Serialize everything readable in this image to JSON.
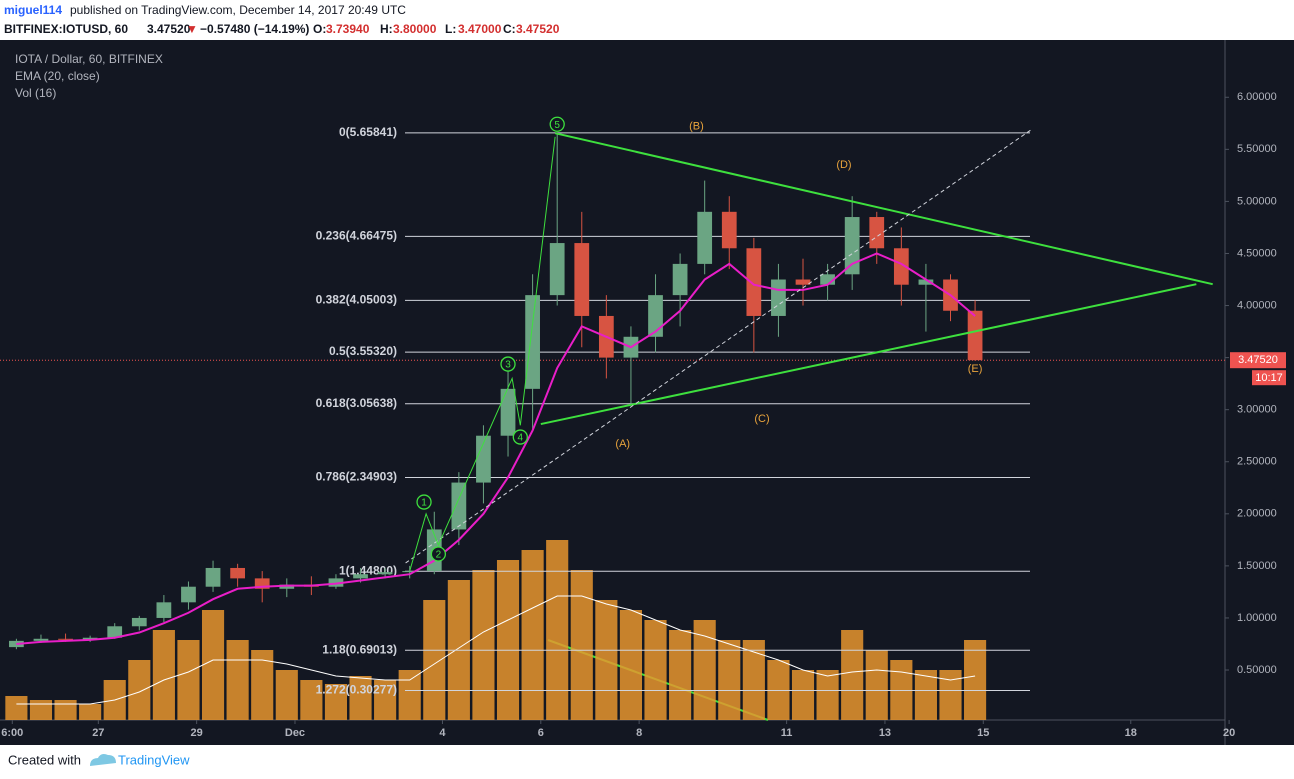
{
  "header": {
    "author": "miguel114",
    "published": "published on TradingView.com, December 14, 2017 20:49 UTC",
    "symbol": "BITFINEX:IOTUSD, 60",
    "last": "3.47520",
    "arrow": "▼",
    "change": "−0.57480 (−14.19%)",
    "ohlc": [
      {
        "key": "O:",
        "value": "3.73940"
      },
      {
        "key": "H:",
        "value": "3.80000"
      },
      {
        "key": "L:",
        "value": "3.47000"
      },
      {
        "key": "C:",
        "value": "3.47520"
      }
    ]
  },
  "footer": {
    "created": "Created with",
    "brand": "TradingView"
  },
  "chart_data": {
    "type": "candlestick",
    "title": "IOTA / Dollar, 60, BITFINEX",
    "up_color": "#6ba583",
    "down_color": "#d75442",
    "candles": {
      "x": [
        "2017-11-25 08:00",
        "2017-11-25 20:00",
        "2017-11-26 08:00",
        "2017-11-26 20:00",
        "2017-11-27 08:00",
        "2017-11-27 20:00",
        "2017-11-28 08:00",
        "2017-11-28 20:00",
        "2017-11-29 08:00",
        "2017-11-29 20:00",
        "2017-11-30 08:00",
        "2017-11-30 20:00",
        "2017-12-01 08:00",
        "2017-12-01 20:00",
        "2017-12-02 08:00",
        "2017-12-02 20:00",
        "2017-12-03 08:00",
        "2017-12-03 20:00",
        "2017-12-04 08:00",
        "2017-12-04 20:00",
        "2017-12-05 08:00",
        "2017-12-05 20:00",
        "2017-12-06 08:00",
        "2017-12-06 20:00",
        "2017-12-07 08:00",
        "2017-12-07 20:00",
        "2017-12-08 08:00",
        "2017-12-08 20:00",
        "2017-12-09 08:00",
        "2017-12-09 20:00",
        "2017-12-10 08:00",
        "2017-12-10 20:00",
        "2017-12-11 08:00",
        "2017-12-11 20:00",
        "2017-12-12 08:00",
        "2017-12-12 20:00",
        "2017-12-13 08:00",
        "2017-12-13 20:00",
        "2017-12-14 08:00",
        "2017-12-14 20:00"
      ],
      "open": [
        0.72,
        0.78,
        0.8,
        0.79,
        0.81,
        0.92,
        1.0,
        1.15,
        1.3,
        1.48,
        1.38,
        1.28,
        1.32,
        1.3,
        1.38,
        1.42,
        1.44,
        1.45,
        1.85,
        2.3,
        2.75,
        3.2,
        4.1,
        4.6,
        3.9,
        3.5,
        3.7,
        4.1,
        4.4,
        4.9,
        4.55,
        3.9,
        4.25,
        4.2,
        4.3,
        4.85,
        4.55,
        4.2,
        4.25,
        3.95
      ],
      "high": [
        0.8,
        0.84,
        0.85,
        0.83,
        0.95,
        1.02,
        1.22,
        1.35,
        1.55,
        1.52,
        1.45,
        1.38,
        1.4,
        1.42,
        1.48,
        1.48,
        1.5,
        2.02,
        2.4,
        2.85,
        3.4,
        4.3,
        5.65841,
        4.9,
        4.1,
        3.8,
        4.3,
        4.5,
        5.2,
        5.05,
        4.65,
        4.4,
        4.45,
        4.4,
        5.05,
        4.9,
        4.75,
        4.4,
        4.3,
        4.05
      ],
      "low": [
        0.7,
        0.76,
        0.77,
        0.77,
        0.8,
        0.88,
        0.96,
        1.08,
        1.25,
        1.3,
        1.15,
        1.2,
        1.22,
        1.28,
        1.34,
        1.38,
        1.38,
        1.42,
        1.7,
        2.1,
        2.55,
        2.8,
        4.0,
        3.6,
        3.3,
        3.05,
        3.55,
        3.8,
        4.3,
        4.35,
        3.55,
        3.7,
        4.0,
        4.05,
        4.15,
        4.4,
        4.0,
        3.75,
        3.85,
        3.47
      ],
      "close": [
        0.78,
        0.8,
        0.79,
        0.81,
        0.92,
        1.0,
        1.15,
        1.3,
        1.48,
        1.38,
        1.28,
        1.32,
        1.3,
        1.38,
        1.42,
        1.44,
        1.45,
        1.85,
        2.3,
        2.75,
        3.2,
        4.1,
        4.6,
        3.9,
        3.5,
        3.7,
        4.1,
        4.4,
        4.9,
        4.55,
        3.9,
        4.25,
        4.2,
        4.3,
        4.85,
        4.55,
        4.2,
        4.25,
        3.95,
        3.4752
      ]
    },
    "ema": {
      "name": "EMA (20, close)",
      "color": "#e91ec8",
      "values": [
        0.75,
        0.77,
        0.78,
        0.79,
        0.81,
        0.86,
        0.95,
        1.05,
        1.18,
        1.28,
        1.3,
        1.31,
        1.31,
        1.33,
        1.36,
        1.39,
        1.42,
        1.55,
        1.75,
        2.0,
        2.35,
        2.8,
        3.4,
        3.8,
        3.7,
        3.6,
        3.75,
        3.95,
        4.25,
        4.4,
        4.2,
        4.15,
        4.15,
        4.2,
        4.4,
        4.5,
        4.4,
        4.25,
        4.1,
        3.9
      ]
    },
    "volume": {
      "name": "Vol (16)",
      "color": "#e8952e",
      "ma_color": "#ffffff",
      "vlim": [
        0,
        100
      ],
      "values": [
        12,
        10,
        10,
        8,
        20,
        30,
        45,
        40,
        55,
        40,
        35,
        25,
        20,
        18,
        22,
        20,
        25,
        60,
        70,
        75,
        80,
        85,
        90,
        75,
        60,
        55,
        50,
        45,
        50,
        40,
        40,
        30,
        25,
        25,
        45,
        35,
        30,
        25,
        25,
        40
      ],
      "ma": [
        8,
        8,
        8,
        8,
        10,
        14,
        20,
        24,
        30,
        30,
        30,
        28,
        25,
        22,
        21,
        20,
        20,
        28,
        36,
        44,
        50,
        56,
        62,
        62,
        58,
        55,
        50,
        45,
        42,
        38,
        34,
        30,
        25,
        22,
        24,
        25,
        24,
        22,
        20,
        22
      ]
    },
    "xlim": [
      "2017-11-25 00:00",
      "2017-12-19 22:00"
    ],
    "xticks": [
      {
        "value": "2017-11-25 06:00",
        "label": "6:00"
      },
      {
        "value": "2017-11-27 00:00",
        "label": "27"
      },
      {
        "value": "2017-11-29 00:00",
        "label": "29"
      },
      {
        "value": "2017-12-01 00:00",
        "label": "Dec"
      },
      {
        "value": "2017-12-04 00:00",
        "label": "4"
      },
      {
        "value": "2017-12-06 00:00",
        "label": "6"
      },
      {
        "value": "2017-12-08 00:00",
        "label": "8"
      },
      {
        "value": "2017-12-11 00:00",
        "label": "11"
      },
      {
        "value": "2017-12-13 00:00",
        "label": "13"
      },
      {
        "value": "2017-12-15 00:00",
        "label": "15"
      },
      {
        "value": "2017-12-18 00:00",
        "label": "18"
      },
      {
        "value": "2017-12-20 00:00",
        "label": "20"
      }
    ],
    "ylim": [
      0.02,
      6.55
    ],
    "yticks": [
      {
        "value": 0.5,
        "label": "0.50000"
      },
      {
        "value": 1,
        "label": "1.00000"
      },
      {
        "value": 1.5,
        "label": "1.50000"
      },
      {
        "value": 2,
        "label": "2.00000"
      },
      {
        "value": 2.5,
        "label": "2.50000"
      },
      {
        "value": 3,
        "label": "3.00000"
      },
      {
        "value": 3.5,
        "label": "3.50000"
      },
      {
        "value": 4,
        "label": "4.00000"
      },
      {
        "value": 4.5,
        "label": "4.50000"
      },
      {
        "value": 5,
        "label": "5.00000"
      },
      {
        "value": 5.5,
        "label": "5.50000"
      },
      {
        "value": 6,
        "label": "6.00000"
      }
    ],
    "last_price": {
      "value": 3.4752,
      "label": "3.47520",
      "countdown": "10:17",
      "color": "#ef5350"
    },
    "fib_levels": [
      {
        "label": "0(5.65841)",
        "value": 5.65841
      },
      {
        "label": "0.236(4.66475)",
        "value": 4.66475
      },
      {
        "label": "0.382(4.05003)",
        "value": 4.05003
      },
      {
        "label": "0.5(3.55320)",
        "value": 3.5532
      },
      {
        "label": "0.618(3.05638)",
        "value": 3.05638
      },
      {
        "label": "0.786(2.34903)",
        "value": 2.34903
      },
      {
        "label": "1(1.44800)",
        "value": 1.448
      },
      {
        "label": "1.18(0.69013)",
        "value": 0.69013
      },
      {
        "label": "1.272(0.30277)",
        "value": 0.30277
      }
    ],
    "trendlines": [
      {
        "x": [
          "2017-12-06 07:00",
          "2017-12-19 16:00"
        ],
        "y": [
          5.655,
          4.205
        ],
        "color": "#3ee03e",
        "dashed": false
      },
      {
        "x": [
          "2017-12-06 00:00",
          "2017-12-19 08:00"
        ],
        "y": [
          2.862,
          4.205
        ],
        "color": "#3ee03e",
        "dashed": false
      },
      {
        "x": [
          "2017-12-03 06:00",
          "2017-12-15 23:00"
        ],
        "y": [
          1.528,
          5.683
        ],
        "color": "#d1d4dc",
        "dashed": true
      }
    ],
    "wave_line": {
      "x": [
        "2017-12-03 08:00",
        "2017-12-03 16:00",
        "2017-12-03 22:00",
        "2017-12-05 10:00",
        "2017-12-05 14:00",
        "2017-12-06 07:00"
      ],
      "y": [
        1.45,
        2.0,
        1.7,
        3.3,
        2.85,
        5.62
      ],
      "color": "#3ee03e"
    },
    "waves": [
      {
        "label": "1",
        "x": "2017-12-03 15:00",
        "y": 2.113
      },
      {
        "label": "2",
        "x": "2017-12-03 22:00",
        "y": 1.614
      },
      {
        "label": "3",
        "x": "2017-12-05 08:00",
        "y": 3.438
      },
      {
        "label": "4",
        "x": "2017-12-05 14:00",
        "y": 2.737
      },
      {
        "label": "5",
        "x": "2017-12-06 08:00",
        "y": 5.741
      }
    ],
    "corrective": [
      {
        "label": "(A)",
        "x": "2017-12-07 16:00",
        "y": 2.67
      },
      {
        "label": "(B)",
        "x": "2017-12-09 04:00",
        "y": 5.72
      },
      {
        "label": "(C)",
        "x": "2017-12-10 12:00",
        "y": 2.91
      },
      {
        "label": "(D)",
        "x": "2017-12-12 04:00",
        "y": 5.35
      },
      {
        "label": "(E)",
        "x": "2017-12-14 20:00",
        "y": 3.39
      }
    ],
    "wave_color": "#3ee03e",
    "corrective_color": "#e8a33c"
  }
}
